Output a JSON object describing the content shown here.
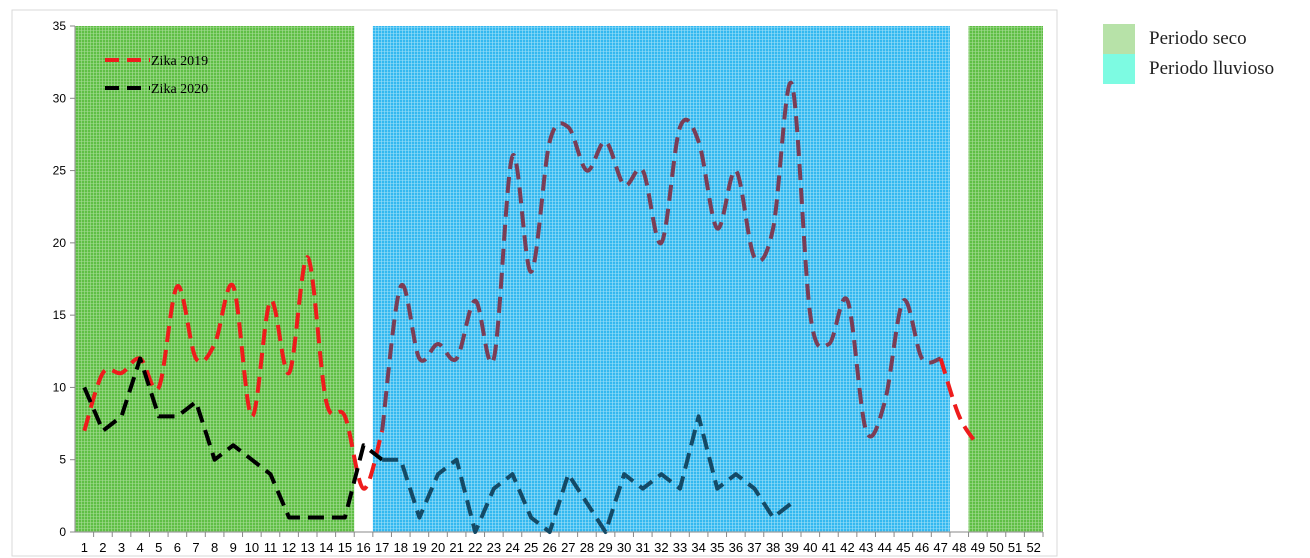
{
  "chart_data": {
    "type": "line",
    "title": "",
    "xlabel": "",
    "ylabel": "",
    "ylim": [
      0,
      35
    ],
    "yticks": [
      0,
      5,
      10,
      15,
      20,
      25,
      30,
      35
    ],
    "x": [
      1,
      2,
      3,
      4,
      5,
      6,
      7,
      8,
      9,
      10,
      11,
      12,
      13,
      14,
      15,
      16,
      17,
      18,
      19,
      20,
      21,
      22,
      23,
      24,
      25,
      26,
      27,
      28,
      29,
      30,
      31,
      32,
      33,
      34,
      35,
      36,
      37,
      38,
      39,
      40,
      41,
      42,
      43,
      44,
      45,
      46,
      47,
      48,
      49,
      50,
      51,
      52
    ],
    "series": [
      {
        "name": "Zika 2019",
        "values": [
          7,
          11,
          11,
          12,
          10,
          17,
          12,
          13,
          17,
          8,
          16,
          11,
          19,
          9,
          8,
          3,
          7,
          17,
          12,
          13,
          12,
          16,
          12,
          26,
          18,
          27,
          28,
          25,
          27,
          24,
          25,
          20,
          28,
          27,
          21,
          25,
          19,
          21,
          31,
          15,
          13,
          16,
          7,
          9,
          16,
          12,
          12,
          8,
          6,
          null,
          null,
          null
        ]
      },
      {
        "name": "Zika 2020",
        "values": [
          10,
          7,
          8,
          12,
          8,
          8,
          9,
          5,
          6,
          5,
          4,
          1,
          1,
          1,
          1,
          6,
          5,
          5,
          1,
          4,
          5,
          0,
          3,
          4,
          1,
          0,
          4,
          2,
          0,
          4,
          3,
          4,
          3,
          8,
          3,
          4,
          3,
          1,
          2,
          null,
          null,
          null,
          null,
          null,
          null,
          null,
          null,
          null,
          null,
          null,
          null,
          null
        ]
      }
    ],
    "periods": [
      {
        "label": "Periodo seco",
        "start": 1,
        "end": 15
      },
      {
        "label": "Periodo lluvioso",
        "start": 17,
        "end": 47
      },
      {
        "label": "Periodo seco",
        "start": 49,
        "end": 52
      }
    ],
    "legend": {
      "placement": "top-left"
    },
    "colors": {
      "zika2019": "#ee1c1c",
      "zika2019_rainy": "#7b3d55",
      "zika2020": "#000000",
      "zika2020_rainy": "#144a66",
      "dry_fill": "#5fbf45",
      "rainy_fill": "#33b8f0",
      "dry_swatch": "#b7e2a8",
      "rainy_swatch": "#7dfbe2"
    }
  },
  "legend_right": [
    {
      "label": "Periodo seco",
      "color": "#b7e2a8"
    },
    {
      "label": "Periodo lluvioso",
      "color": "#7dfbe2"
    }
  ]
}
